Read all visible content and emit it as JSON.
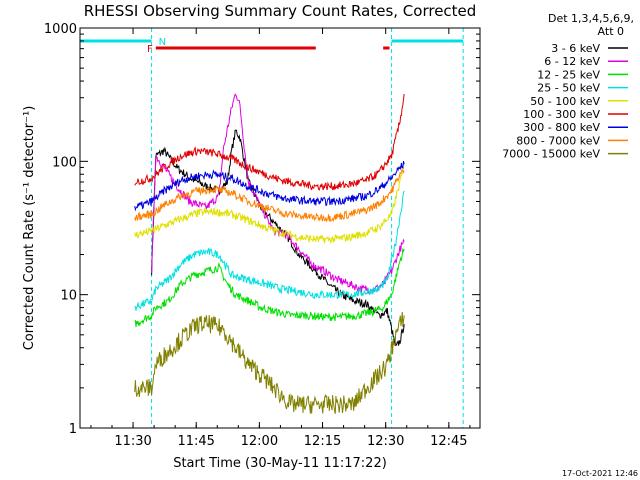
{
  "chart_data": {
    "type": "line",
    "title": "RHESSI Observing Summary Count Rates, Corrected",
    "xlabel": "Start Time (30-May-11 11:17:22)",
    "ylabel": "Corrected Count Rate (s⁻¹ detector⁻¹)",
    "yscale": "log",
    "ylim": [
      1,
      1000
    ],
    "xlim_minutes": [
      0,
      95
    ],
    "x_start": "11:17:22",
    "x_tick_labels": [
      {
        "label": "11:30",
        "minute": 12.6
      },
      {
        "label": "11:45",
        "minute": 27.6
      },
      {
        "label": "12:00",
        "minute": 42.6
      },
      {
        "label": "12:15",
        "minute": 57.6
      },
      {
        "label": "12:30",
        "minute": 72.6
      },
      {
        "label": "12:45",
        "minute": 87.6
      }
    ],
    "y_tick_labels": [
      {
        "label": "1",
        "value": 1
      },
      {
        "label": "10",
        "value": 10
      },
      {
        "label": "100",
        "value": 100
      },
      {
        "label": "1000",
        "value": 1000
      }
    ],
    "legend_header": [
      "Det 1,3,4,5,6,9,",
      "Att 0"
    ],
    "legend_position": "right",
    "flags": {
      "f_label": "F",
      "n_label": "N",
      "night_segments": [
        [
          0,
          17
        ],
        [
          74,
          91
        ]
      ],
      "flare_segments": [
        [
          18,
          56
        ],
        [
          72,
          73.5
        ]
      ],
      "night_boundaries": [
        17,
        74,
        91
      ],
      "colors": {
        "night": "#00e0e0",
        "flare": "#e00000",
        "f_label": "#e00000",
        "n_label": "#00e0e0"
      }
    },
    "footer_date": "17-Oct-2021 12:46",
    "series": [
      {
        "name": "3 - 6 keV",
        "color": "#000000",
        "points": [
          [
            17,
            15
          ],
          [
            18,
            110
          ],
          [
            20,
            120
          ],
          [
            23,
            90
          ],
          [
            26,
            75
          ],
          [
            30,
            65
          ],
          [
            33,
            60
          ],
          [
            35,
            70
          ],
          [
            36,
            120
          ],
          [
            37,
            170
          ],
          [
            38,
            150
          ],
          [
            40,
            70
          ],
          [
            43,
            45
          ],
          [
            46,
            35
          ],
          [
            49,
            28
          ],
          [
            52,
            20
          ],
          [
            56,
            15
          ],
          [
            59,
            12
          ],
          [
            62,
            10
          ],
          [
            65,
            9
          ],
          [
            68,
            8.5
          ],
          [
            71,
            7
          ],
          [
            73,
            7.5
          ],
          [
            75,
            4
          ],
          [
            76,
            4.5
          ],
          [
            77,
            6
          ]
        ]
      },
      {
        "name": "6 - 12 keV",
        "color": "#e000e0",
        "points": [
          [
            17,
            15
          ],
          [
            18,
            110
          ],
          [
            20,
            90
          ],
          [
            23,
            65
          ],
          [
            26,
            50
          ],
          [
            30,
            45
          ],
          [
            33,
            55
          ],
          [
            34,
            120
          ],
          [
            36,
            250
          ],
          [
            37,
            330
          ],
          [
            38,
            260
          ],
          [
            39,
            130
          ],
          [
            40,
            70
          ],
          [
            43,
            45
          ],
          [
            46,
            30
          ],
          [
            49,
            28
          ],
          [
            52,
            22
          ],
          [
            55,
            17
          ],
          [
            58,
            15
          ],
          [
            61,
            13
          ],
          [
            64,
            12
          ],
          [
            67,
            11
          ],
          [
            70,
            11
          ],
          [
            72,
            12
          ],
          [
            74,
            15
          ],
          [
            76,
            22
          ],
          [
            77,
            25
          ]
        ]
      },
      {
        "name": "12 - 25 keV",
        "color": "#00e000",
        "points": [
          [
            13,
            6
          ],
          [
            15,
            6.5
          ],
          [
            17,
            7
          ],
          [
            18,
            8
          ],
          [
            21,
            9
          ],
          [
            24,
            12
          ],
          [
            27,
            14
          ],
          [
            30,
            15
          ],
          [
            33,
            16
          ],
          [
            35,
            12
          ],
          [
            37,
            10
          ],
          [
            40,
            9
          ],
          [
            43,
            8
          ],
          [
            46,
            7.5
          ],
          [
            50,
            7
          ],
          [
            54,
            7
          ],
          [
            58,
            6.8
          ],
          [
            62,
            6.8
          ],
          [
            66,
            7
          ],
          [
            70,
            7.5
          ],
          [
            72,
            8
          ],
          [
            74,
            10
          ],
          [
            76,
            18
          ],
          [
            77,
            22
          ]
        ]
      },
      {
        "name": "25 - 50 keV",
        "color": "#00e0e0",
        "points": [
          [
            13,
            8
          ],
          [
            15,
            8.5
          ],
          [
            17,
            9
          ],
          [
            18,
            11
          ],
          [
            21,
            13
          ],
          [
            24,
            17
          ],
          [
            27,
            20
          ],
          [
            30,
            21
          ],
          [
            33,
            20
          ],
          [
            36,
            14
          ],
          [
            40,
            13
          ],
          [
            44,
            12
          ],
          [
            48,
            11
          ],
          [
            52,
            10.5
          ],
          [
            56,
            10
          ],
          [
            60,
            10
          ],
          [
            64,
            10
          ],
          [
            68,
            10.5
          ],
          [
            71,
            11
          ],
          [
            73,
            13
          ],
          [
            75,
            25
          ],
          [
            77,
            60
          ]
        ]
      },
      {
        "name": "50 - 100 keV",
        "color": "#e0e000",
        "points": [
          [
            13,
            28
          ],
          [
            15,
            29
          ],
          [
            17,
            30
          ],
          [
            20,
            33
          ],
          [
            24,
            37
          ],
          [
            28,
            41
          ],
          [
            32,
            42
          ],
          [
            36,
            40
          ],
          [
            40,
            36
          ],
          [
            44,
            32
          ],
          [
            48,
            29
          ],
          [
            52,
            27
          ],
          [
            56,
            26
          ],
          [
            60,
            26
          ],
          [
            64,
            27
          ],
          [
            68,
            29
          ],
          [
            71,
            32
          ],
          [
            74,
            40
          ],
          [
            76,
            70
          ],
          [
            77,
            90
          ]
        ]
      },
      {
        "name": "100 - 300 keV",
        "color": "#e00000",
        "points": [
          [
            13,
            70
          ],
          [
            15,
            72
          ],
          [
            17,
            75
          ],
          [
            20,
            90
          ],
          [
            24,
            110
          ],
          [
            28,
            120
          ],
          [
            32,
            115
          ],
          [
            36,
            105
          ],
          [
            40,
            90
          ],
          [
            44,
            80
          ],
          [
            48,
            72
          ],
          [
            52,
            68
          ],
          [
            56,
            65
          ],
          [
            60,
            65
          ],
          [
            64,
            67
          ],
          [
            68,
            72
          ],
          [
            71,
            82
          ],
          [
            74,
            110
          ],
          [
            76,
            200
          ],
          [
            77,
            320
          ]
        ]
      },
      {
        "name": "300 - 800 keV",
        "color": "#0000e0",
        "points": [
          [
            13,
            45
          ],
          [
            15,
            47
          ],
          [
            17,
            50
          ],
          [
            20,
            60
          ],
          [
            24,
            72
          ],
          [
            28,
            78
          ],
          [
            32,
            80
          ],
          [
            36,
            75
          ],
          [
            40,
            65
          ],
          [
            44,
            58
          ],
          [
            48,
            53
          ],
          [
            52,
            51
          ],
          [
            56,
            50
          ],
          [
            60,
            50
          ],
          [
            64,
            52
          ],
          [
            68,
            55
          ],
          [
            71,
            62
          ],
          [
            74,
            75
          ],
          [
            76,
            90
          ],
          [
            77,
            95
          ]
        ]
      },
      {
        "name": "800 - 7000 keV",
        "color": "#ff8000",
        "points": [
          [
            13,
            38
          ],
          [
            15,
            39
          ],
          [
            17,
            40
          ],
          [
            20,
            47
          ],
          [
            24,
            55
          ],
          [
            28,
            60
          ],
          [
            32,
            62
          ],
          [
            36,
            58
          ],
          [
            40,
            50
          ],
          [
            44,
            45
          ],
          [
            48,
            41
          ],
          [
            52,
            39
          ],
          [
            56,
            38
          ],
          [
            60,
            38
          ],
          [
            64,
            40
          ],
          [
            68,
            43
          ],
          [
            71,
            48
          ],
          [
            74,
            60
          ],
          [
            76,
            80
          ],
          [
            77,
            85
          ]
        ]
      },
      {
        "name": "7000 - 15000 keV",
        "color": "#808000",
        "points": [
          [
            13,
            2
          ],
          [
            15,
            2
          ],
          [
            17,
            2
          ],
          [
            18,
            3
          ],
          [
            20,
            3.5
          ],
          [
            22,
            4
          ],
          [
            25,
            5
          ],
          [
            28,
            6
          ],
          [
            31,
            6
          ],
          [
            34,
            5.5
          ],
          [
            37,
            4
          ],
          [
            40,
            3
          ],
          [
            43,
            2.5
          ],
          [
            46,
            2
          ],
          [
            50,
            1.5
          ],
          [
            55,
            1.5
          ],
          [
            60,
            1.5
          ],
          [
            65,
            1.5
          ],
          [
            68,
            2
          ],
          [
            71,
            2.5
          ],
          [
            73,
            3
          ],
          [
            75,
            5
          ],
          [
            77,
            7
          ]
        ]
      }
    ]
  }
}
